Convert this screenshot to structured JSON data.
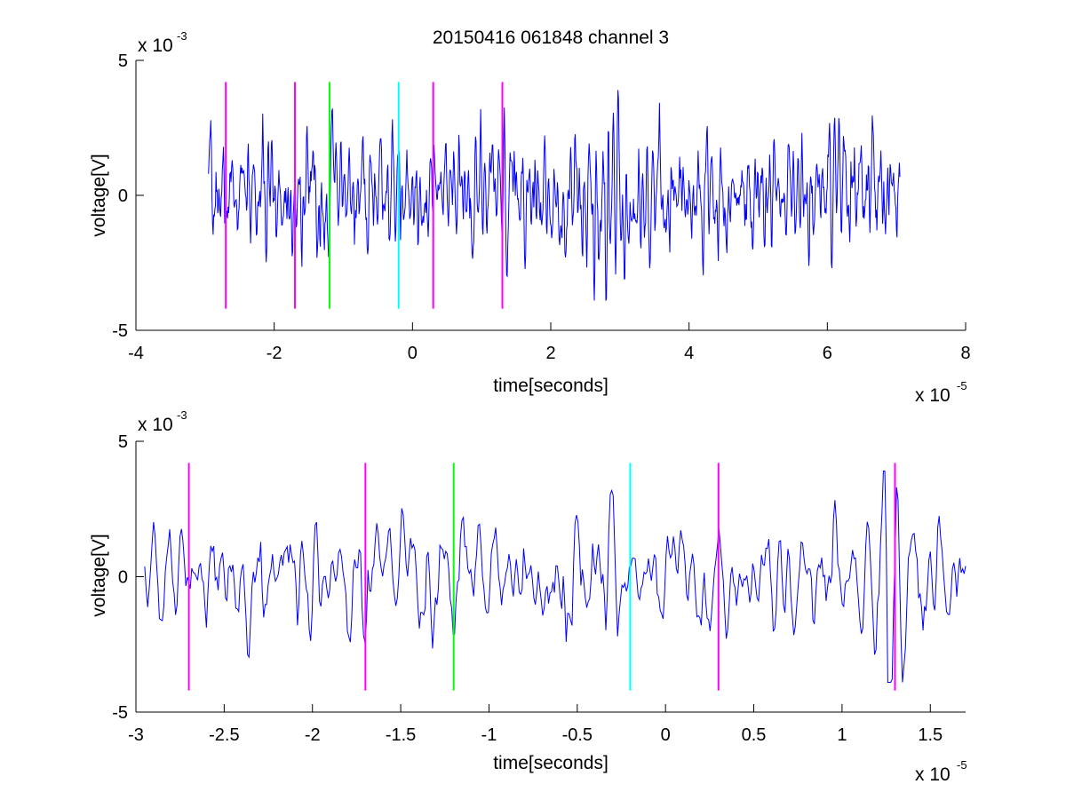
{
  "figure": {
    "title": "20150416 061848 channel 3"
  },
  "chart_data": [
    {
      "type": "line",
      "panel": "top",
      "xlabel": "time[seconds]",
      "ylabel": "voltage[V]",
      "x_exponent": {
        "base": "x 10",
        "power": "-5"
      },
      "y_exponent": {
        "base": "x 10",
        "power": "-3"
      },
      "xlim": [
        -4,
        8
      ],
      "ylim": [
        -5,
        5
      ],
      "xticks": [
        -4,
        -2,
        0,
        2,
        4,
        6,
        8
      ],
      "xtick_labels": [
        "-4",
        "-2",
        "0",
        "2",
        "4",
        "6",
        "8"
      ],
      "yticks": [
        -5,
        0,
        5
      ],
      "ytick_labels": [
        "-5",
        "0",
        "5"
      ],
      "series": [
        {
          "color": "#0000ff",
          "x_range": [
            -2.95,
            7.05
          ],
          "num_points": 1200,
          "seed": 7,
          "amplitude": 1.0,
          "bursts": [
            {
              "x": 2.8,
              "width": 0.35,
              "gain": 1.9
            },
            {
              "x": 6.3,
              "width": 0.5,
              "gain": 1.3
            },
            {
              "x": -1.4,
              "width": 0.25,
              "gain": 1.3
            }
          ]
        }
      ],
      "markers": [
        {
          "x": -2.7,
          "color": "#ff00ff",
          "y_range": [
            -4.2,
            4.2
          ]
        },
        {
          "x": -1.7,
          "color": "#ff00ff",
          "y_range": [
            -4.2,
            4.2
          ]
        },
        {
          "x": -1.2,
          "color": "#00ff00",
          "y_range": [
            -4.2,
            4.2
          ]
        },
        {
          "x": -0.2,
          "color": "#00ffff",
          "y_range": [
            -4.2,
            4.2
          ]
        },
        {
          "x": 0.3,
          "color": "#ff00ff",
          "y_range": [
            -4.2,
            4.2
          ]
        },
        {
          "x": 1.3,
          "color": "#ff00ff",
          "y_range": [
            -4.2,
            4.2
          ]
        }
      ]
    },
    {
      "type": "line",
      "panel": "bottom",
      "xlabel": "time[seconds]",
      "ylabel": "voltage[V]",
      "x_exponent": {
        "base": "x 10",
        "power": "-5"
      },
      "y_exponent": {
        "base": "x 10",
        "power": "-3"
      },
      "xlim": [
        -3,
        1.7
      ],
      "ylim": [
        -5,
        5
      ],
      "xticks": [
        -3,
        -2.5,
        -2,
        -1.5,
        -1,
        -0.5,
        0,
        0.5,
        1,
        1.5
      ],
      "xtick_labels": [
        "-3",
        "-2.5",
        "-2",
        "-1.5",
        "-1",
        "-0.5",
        "0",
        "0.5",
        "1",
        "1.5"
      ],
      "yticks": [
        -5,
        0,
        5
      ],
      "ytick_labels": [
        "-5",
        "0",
        "5"
      ],
      "series": [
        {
          "color": "#0000ff",
          "x_range": [
            -2.95,
            1.7
          ],
          "num_points": 560,
          "seed": 21,
          "amplitude": 1.0,
          "bursts": [
            {
              "x": 1.3,
              "width": 0.15,
              "gain": 1.8
            },
            {
              "x": -1.35,
              "width": 0.12,
              "gain": 1.6
            },
            {
              "x": -0.5,
              "width": 0.1,
              "gain": 1.4
            }
          ]
        }
      ],
      "markers": [
        {
          "x": -2.7,
          "color": "#ff00ff",
          "y_range": [
            -4.2,
            4.2
          ]
        },
        {
          "x": -1.7,
          "color": "#ff00ff",
          "y_range": [
            -4.2,
            4.2
          ]
        },
        {
          "x": -1.2,
          "color": "#00ff00",
          "y_range": [
            -4.2,
            4.2
          ]
        },
        {
          "x": -0.2,
          "color": "#00ffff",
          "y_range": [
            -4.2,
            4.2
          ]
        },
        {
          "x": 0.3,
          "color": "#ff00ff",
          "y_range": [
            -4.2,
            4.2
          ]
        },
        {
          "x": 1.3,
          "color": "#ff00ff",
          "y_range": [
            -4.2,
            4.2
          ]
        }
      ]
    }
  ]
}
